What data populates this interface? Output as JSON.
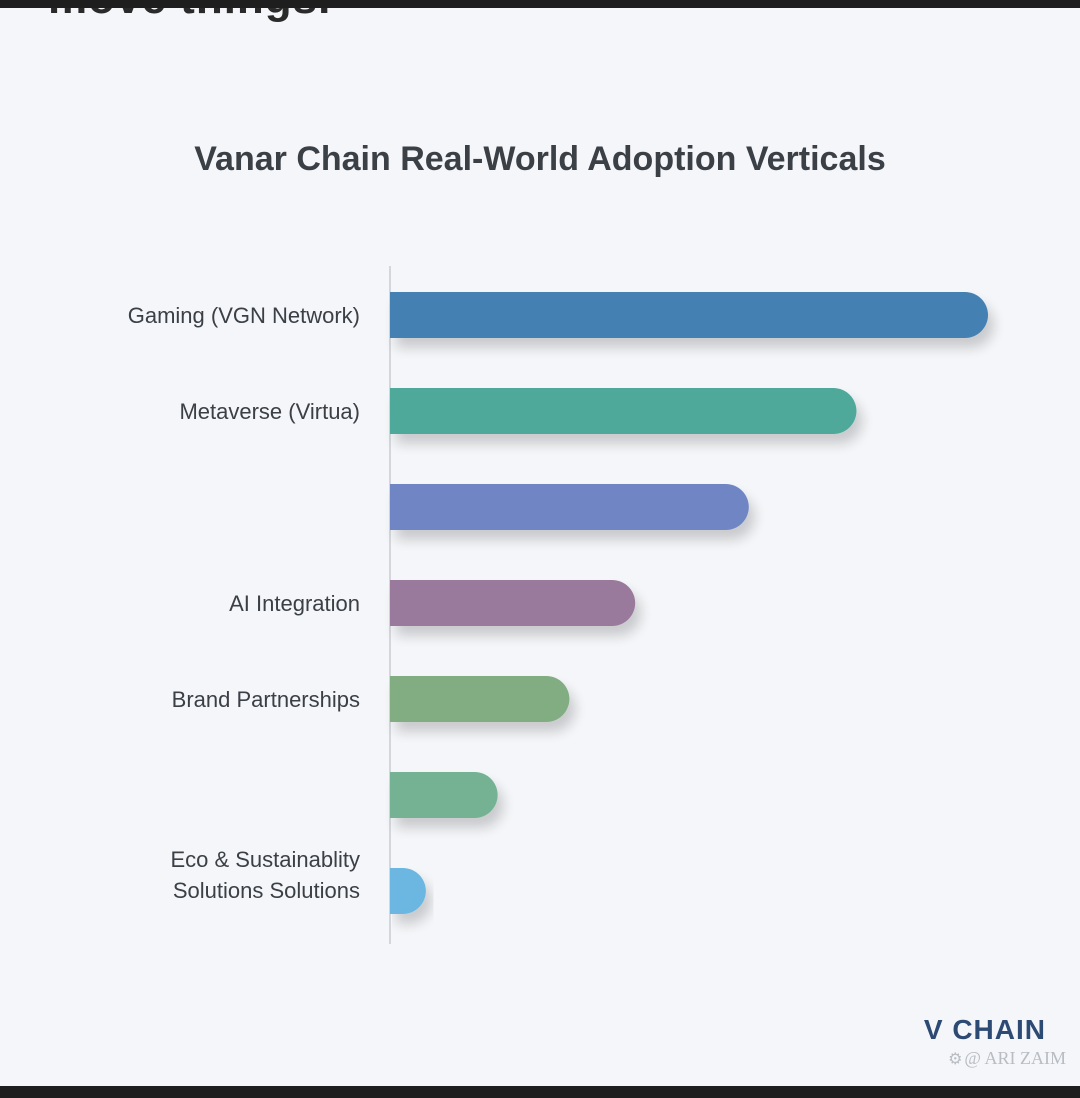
{
  "header_fragment": "move things.",
  "chart_data": {
    "type": "bar",
    "orientation": "horizontal",
    "title": "Vanar Chain Real-World Adoption Verticals",
    "xlabel": "",
    "ylabel": "",
    "grid": false,
    "legend": "none",
    "categories": [
      "Gaming (VGN Network)",
      "Metaverse (Virtua)",
      "",
      "AI Integration",
      "Brand Partnerships",
      "",
      "Eco & Sustainablity Solutions Solutions"
    ],
    "values": [
      100,
      78,
      60,
      41,
      30,
      18,
      6
    ],
    "colors": [
      "#4580b3",
      "#4fa99a",
      "#6f86c4",
      "#9a7a9c",
      "#82ad82",
      "#74b293",
      "#6cb7e2"
    ],
    "xlim": [
      0,
      100
    ]
  },
  "branding": {
    "logo": "V CHAIN",
    "credit_icon": "camera-icon",
    "credit": "@ ARI ZAIM"
  }
}
